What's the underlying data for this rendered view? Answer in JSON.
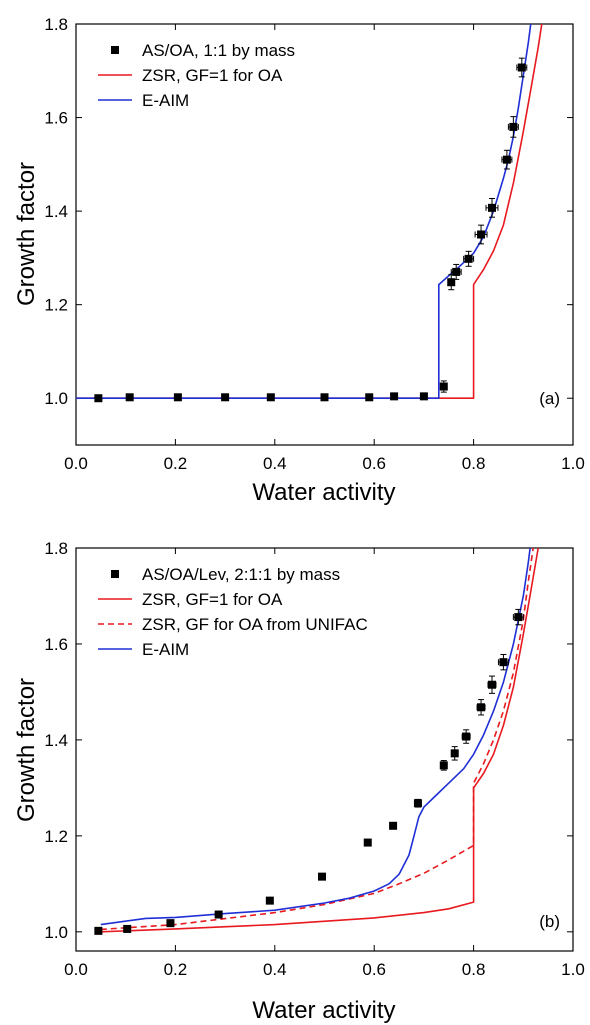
{
  "colors": {
    "axis": "#000000",
    "zsr": "#e8191f",
    "eaim": "#1f2fd6",
    "marker": "#000000"
  },
  "chart_data": [
    {
      "type": "line",
      "panel_label": "(a)",
      "xlabel": "Water activity",
      "ylabel": "Growth factor",
      "xlim": [
        0.0,
        1.0
      ],
      "ylim": [
        0.9,
        1.8
      ],
      "x_ticks": [
        "0.0",
        "0.2",
        "0.4",
        "0.6",
        "0.8",
        "1.0"
      ],
      "y_ticks": [
        "1.0",
        "1.2",
        "1.4",
        "1.6",
        "1.8"
      ],
      "legend_position": "top-left",
      "grid": false,
      "series": [
        {
          "name": "AS/OA, 1:1 by mass",
          "kind": "scatter",
          "x": [
            0.045,
            0.108,
            0.205,
            0.3,
            0.392,
            0.5,
            0.59,
            0.64,
            0.7,
            0.74,
            0.755,
            0.765,
            0.79,
            0.815,
            0.837,
            0.867,
            0.88,
            0.897
          ],
          "y": [
            1.0,
            1.002,
            1.002,
            1.002,
            1.002,
            1.002,
            1.002,
            1.004,
            1.004,
            1.025,
            1.248,
            1.27,
            1.298,
            1.35,
            1.407,
            1.51,
            1.58,
            1.707
          ],
          "xerr": [
            0.003,
            0.004,
            0.004,
            0.004,
            0.004,
            0.004,
            0.004,
            0.004,
            0.004,
            0.006,
            0.006,
            0.01,
            0.01,
            0.012,
            0.012,
            0.01,
            0.01,
            0.01
          ],
          "yerr": [
            0.006,
            0.006,
            0.006,
            0.006,
            0.006,
            0.006,
            0.006,
            0.006,
            0.006,
            0.012,
            0.016,
            0.016,
            0.016,
            0.02,
            0.02,
            0.02,
            0.022,
            0.02
          ]
        },
        {
          "name": "ZSR, GF=1 for OA",
          "kind": "line",
          "style": "solid",
          "color": "zsr",
          "x": [
            0.0,
            0.8,
            0.8,
            0.82,
            0.84,
            0.86,
            0.88,
            0.9,
            0.915,
            0.93,
            0.94,
            0.95
          ],
          "y": [
            1.0,
            1.0,
            1.243,
            1.275,
            1.315,
            1.37,
            1.46,
            1.57,
            1.66,
            1.75,
            1.82,
            1.86
          ]
        },
        {
          "name": "E-AIM",
          "kind": "line",
          "style": "solid",
          "color": "eaim",
          "x": [
            0.0,
            0.73,
            0.73,
            0.75,
            0.77,
            0.79,
            0.8,
            0.82,
            0.84,
            0.86,
            0.87,
            0.88,
            0.89,
            0.9,
            0.91,
            0.92
          ],
          "y": [
            1.0,
            1.0,
            1.243,
            1.262,
            1.28,
            1.3,
            1.31,
            1.345,
            1.4,
            1.47,
            1.51,
            1.56,
            1.62,
            1.69,
            1.76,
            1.84
          ]
        }
      ]
    },
    {
      "type": "line",
      "panel_label": "(b)",
      "xlabel": "Water activity",
      "ylabel": "Growth factor",
      "xlim": [
        0.0,
        1.0
      ],
      "ylim": [
        0.96,
        1.8
      ],
      "x_ticks": [
        "0.0",
        "0.2",
        "0.4",
        "0.6",
        "0.8",
        "1.0"
      ],
      "y_ticks": [
        "1.0",
        "1.2",
        "1.4",
        "1.6",
        "1.8"
      ],
      "legend_position": "top-left",
      "grid": false,
      "series": [
        {
          "name": "AS/OA/Lev, 2:1:1 by mass",
          "kind": "scatter",
          "x": [
            0.045,
            0.103,
            0.19,
            0.287,
            0.39,
            0.495,
            0.587,
            0.638,
            0.688,
            0.74,
            0.762,
            0.785,
            0.815,
            0.837,
            0.86,
            0.89
          ],
          "y": [
            1.002,
            1.006,
            1.018,
            1.036,
            1.065,
            1.115,
            1.186,
            1.221,
            1.268,
            1.347,
            1.372,
            1.407,
            1.468,
            1.515,
            1.562,
            1.656
          ],
          "xerr": [
            0.003,
            0.003,
            0.003,
            0.003,
            0.003,
            0.003,
            0.003,
            0.003,
            0.003,
            0.004,
            0.006,
            0.008,
            0.008,
            0.008,
            0.01,
            0.01
          ],
          "yerr": [
            0.006,
            0.006,
            0.006,
            0.006,
            0.006,
            0.006,
            0.006,
            0.006,
            0.008,
            0.01,
            0.014,
            0.014,
            0.016,
            0.018,
            0.016,
            0.016
          ]
        },
        {
          "name": "ZSR, GF=1 for OA",
          "kind": "line",
          "style": "solid",
          "color": "zsr",
          "x": [
            0.05,
            0.2,
            0.4,
            0.6,
            0.7,
            0.75,
            0.8,
            0.8,
            0.82,
            0.84,
            0.86,
            0.88,
            0.9,
            0.915,
            0.93,
            0.94
          ],
          "y": [
            1.0,
            1.006,
            1.015,
            1.029,
            1.04,
            1.048,
            1.062,
            1.3,
            1.33,
            1.37,
            1.43,
            1.51,
            1.62,
            1.71,
            1.8,
            1.86
          ]
        },
        {
          "name": "ZSR, GF for OA from UNIFAC",
          "kind": "line",
          "style": "dashed",
          "color": "zsr",
          "x": [
            0.05,
            0.2,
            0.4,
            0.5,
            0.6,
            0.65,
            0.7,
            0.75,
            0.8,
            0.8,
            0.82,
            0.84,
            0.86,
            0.88,
            0.9,
            0.91,
            0.92
          ],
          "y": [
            1.005,
            1.015,
            1.04,
            1.057,
            1.08,
            1.1,
            1.122,
            1.15,
            1.18,
            1.31,
            1.35,
            1.4,
            1.46,
            1.54,
            1.65,
            1.73,
            1.8
          ]
        },
        {
          "name": "E-AIM",
          "kind": "line",
          "style": "solid",
          "color": "eaim",
          "x": [
            0.05,
            0.12,
            0.14,
            0.2,
            0.3,
            0.4,
            0.5,
            0.55,
            0.6,
            0.63,
            0.65,
            0.67,
            0.68,
            0.69,
            0.7,
            0.72,
            0.75,
            0.78,
            0.8,
            0.82,
            0.84,
            0.86,
            0.88,
            0.9,
            0.91,
            0.92
          ],
          "y": [
            1.015,
            1.025,
            1.028,
            1.03,
            1.038,
            1.045,
            1.06,
            1.07,
            1.085,
            1.1,
            1.12,
            1.16,
            1.2,
            1.24,
            1.26,
            1.28,
            1.31,
            1.34,
            1.37,
            1.41,
            1.46,
            1.52,
            1.6,
            1.7,
            1.77,
            1.85
          ]
        }
      ]
    }
  ]
}
